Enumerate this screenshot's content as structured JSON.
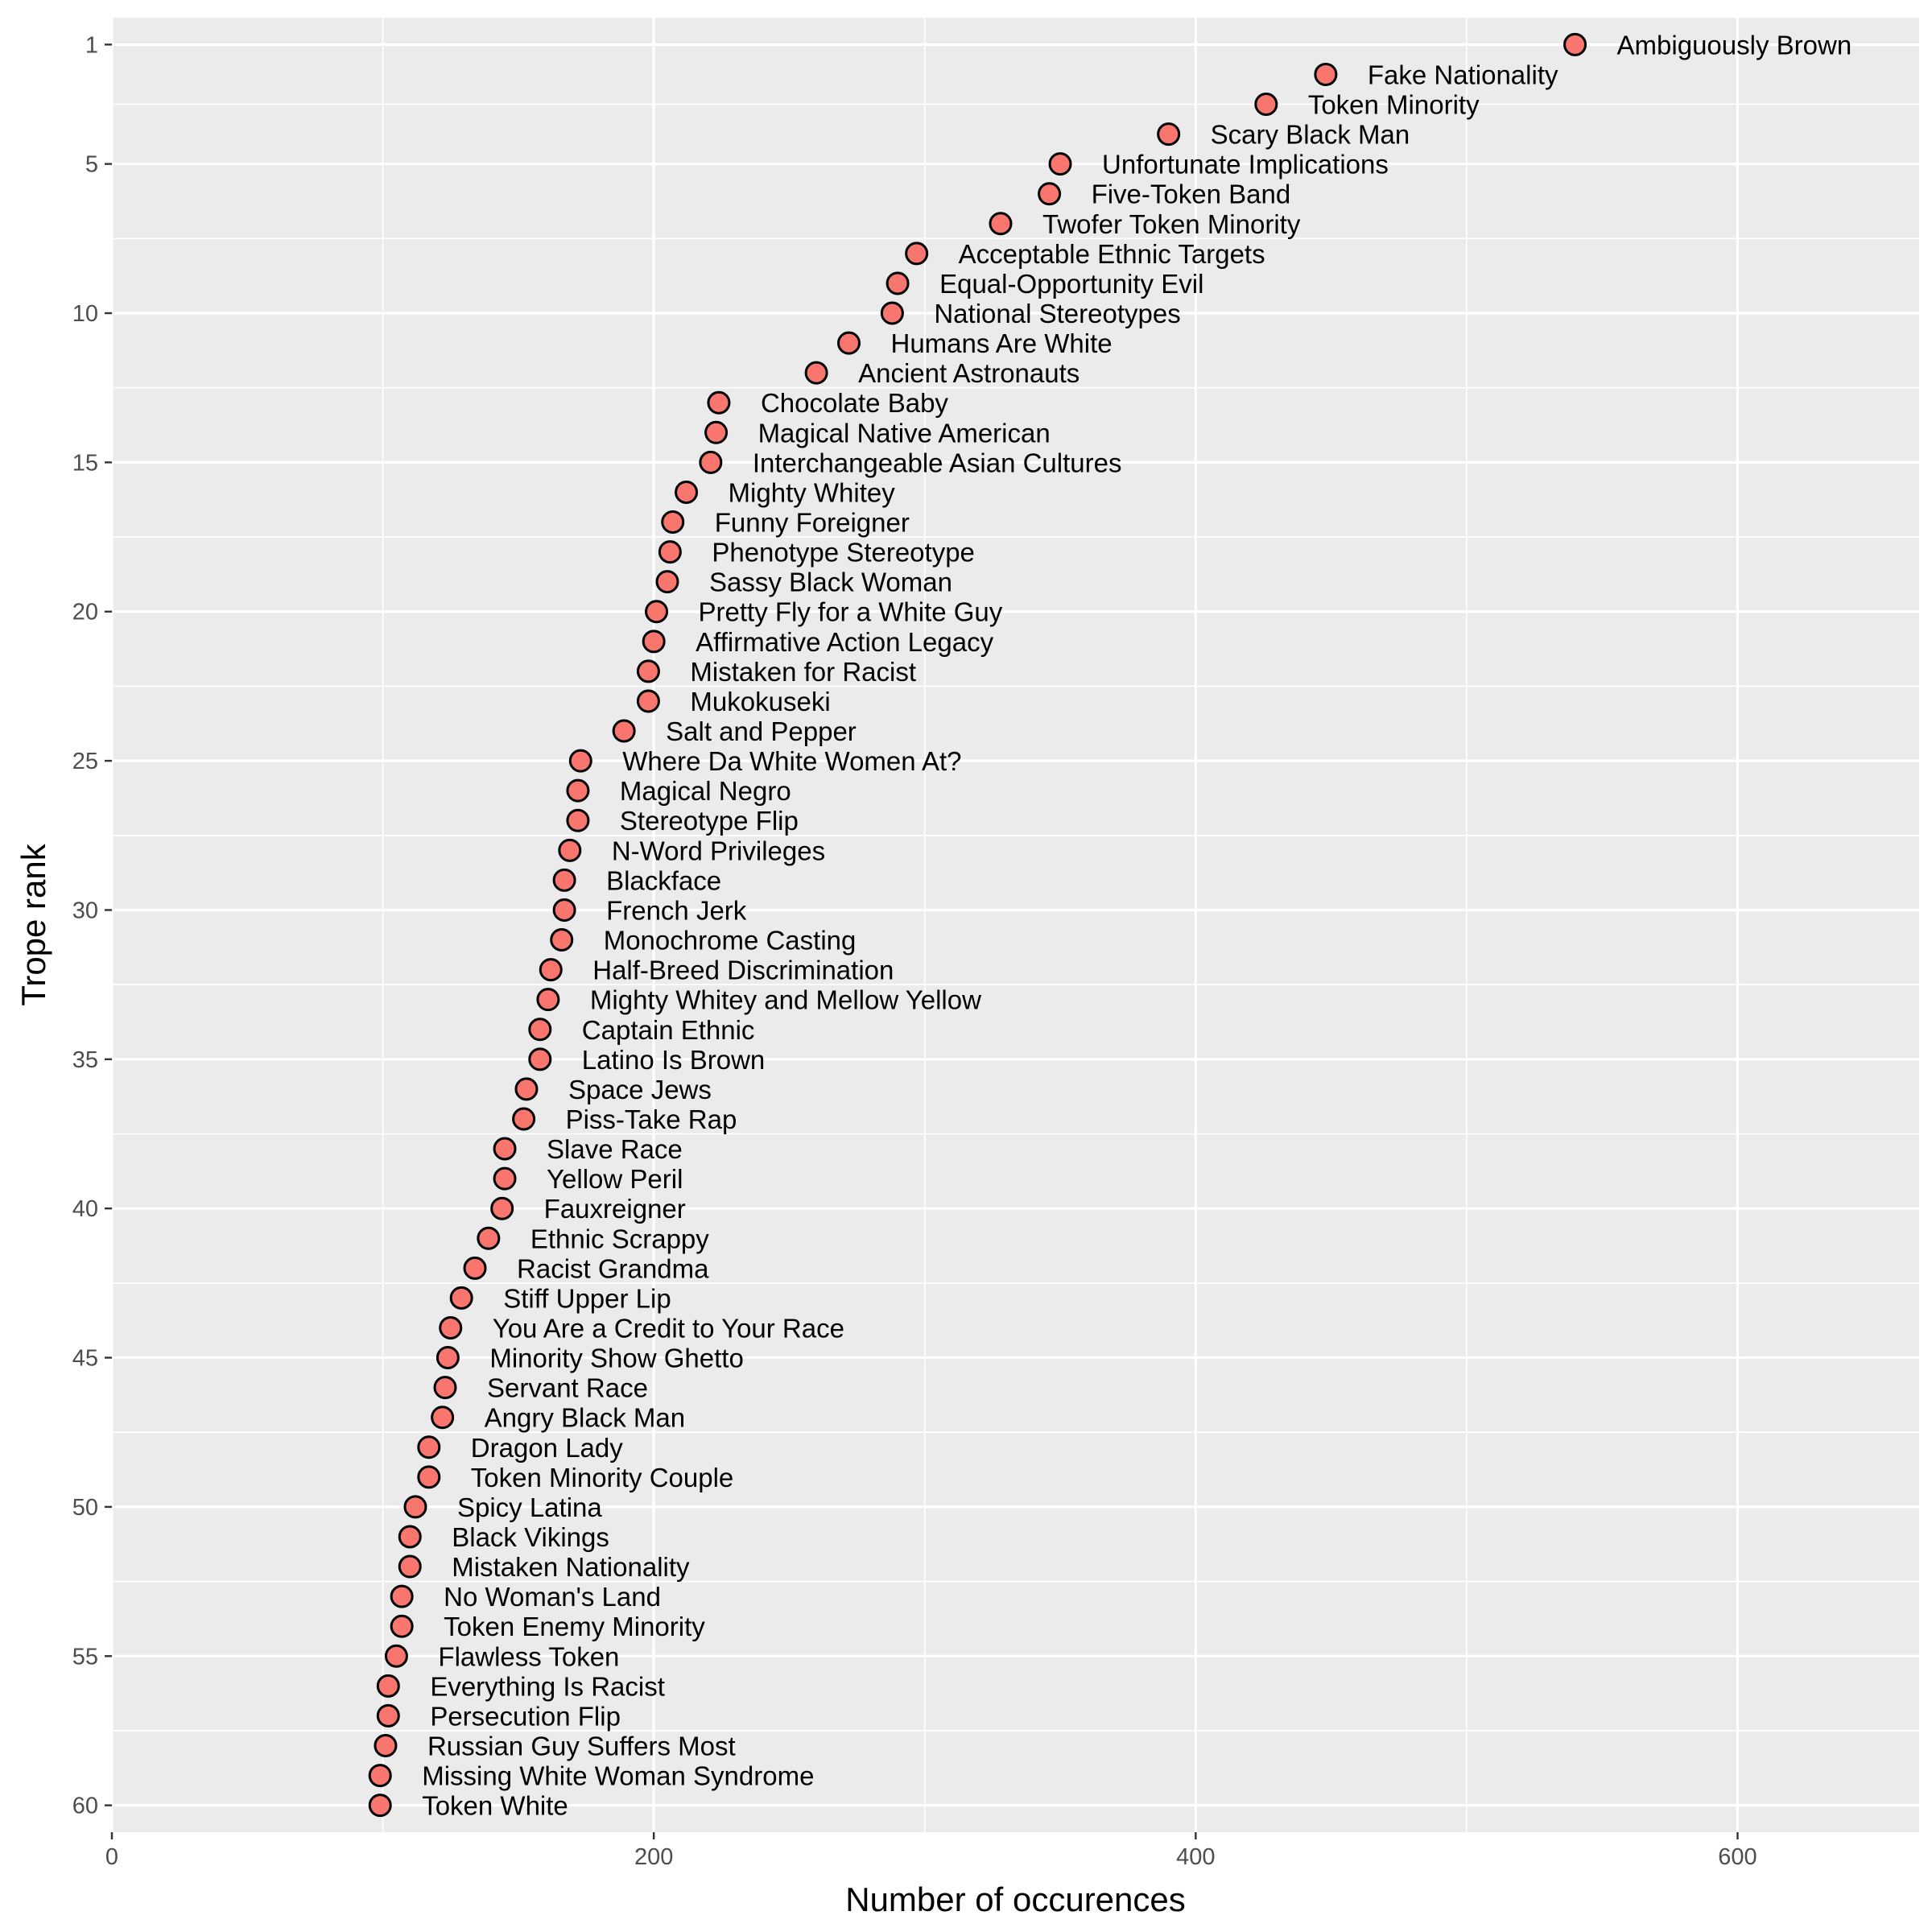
{
  "chart_data": {
    "type": "scatter",
    "xlabel": "Number of occurences",
    "ylabel": "Trope rank",
    "xlim": [
      0,
      667
    ],
    "ylim": [
      60.9,
      0.1
    ],
    "x_ticks": [
      0,
      200,
      400,
      600
    ],
    "y_ticks": [
      1,
      5,
      10,
      15,
      20,
      25,
      30,
      35,
      40,
      45,
      50,
      55,
      60
    ],
    "grid": true,
    "legend": "none",
    "colors": {
      "panel": "#ebebeb",
      "grid": "#ffffff",
      "point_fill": "#f8766d",
      "point_stroke": "#000000",
      "tick": "#4d4d4d"
    },
    "points": [
      {
        "rank": 1,
        "count": 540,
        "label": "Ambiguously Brown"
      },
      {
        "rank": 2,
        "count": 448,
        "label": "Fake Nationality"
      },
      {
        "rank": 3,
        "count": 426,
        "label": "Token Minority"
      },
      {
        "rank": 4,
        "count": 390,
        "label": "Scary Black Man"
      },
      {
        "rank": 5,
        "count": 350,
        "label": "Unfortunate Implications"
      },
      {
        "rank": 6,
        "count": 346,
        "label": "Five-Token Band"
      },
      {
        "rank": 7,
        "count": 328,
        "label": "Twofer Token Minority"
      },
      {
        "rank": 8,
        "count": 297,
        "label": "Acceptable Ethnic Targets"
      },
      {
        "rank": 9,
        "count": 290,
        "label": "Equal-Opportunity Evil"
      },
      {
        "rank": 10,
        "count": 288,
        "label": "National Stereotypes"
      },
      {
        "rank": 11,
        "count": 272,
        "label": "Humans Are White"
      },
      {
        "rank": 12,
        "count": 260,
        "label": "Ancient Astronauts"
      },
      {
        "rank": 13,
        "count": 224,
        "label": "Chocolate Baby"
      },
      {
        "rank": 14,
        "count": 223,
        "label": "Magical Native American"
      },
      {
        "rank": 15,
        "count": 221,
        "label": "Interchangeable Asian Cultures"
      },
      {
        "rank": 16,
        "count": 212,
        "label": "Mighty Whitey"
      },
      {
        "rank": 17,
        "count": 207,
        "label": "Funny Foreigner"
      },
      {
        "rank": 18,
        "count": 206,
        "label": "Phenotype Stereotype"
      },
      {
        "rank": 19,
        "count": 205,
        "label": "Sassy Black Woman"
      },
      {
        "rank": 20,
        "count": 201,
        "label": "Pretty Fly for a White Guy"
      },
      {
        "rank": 21,
        "count": 200,
        "label": "Affirmative Action Legacy"
      },
      {
        "rank": 22,
        "count": 198,
        "label": "Mistaken for Racist"
      },
      {
        "rank": 23,
        "count": 198,
        "label": "Mukokuseki"
      },
      {
        "rank": 24,
        "count": 189,
        "label": "Salt and Pepper"
      },
      {
        "rank": 25,
        "count": 173,
        "label": "Where Da White Women At?"
      },
      {
        "rank": 26,
        "count": 172,
        "label": "Magical Negro"
      },
      {
        "rank": 27,
        "count": 172,
        "label": "Stereotype Flip"
      },
      {
        "rank": 28,
        "count": 169,
        "label": "N-Word Privileges"
      },
      {
        "rank": 29,
        "count": 167,
        "label": "Blackface"
      },
      {
        "rank": 30,
        "count": 167,
        "label": "French Jerk"
      },
      {
        "rank": 31,
        "count": 166,
        "label": "Monochrome Casting"
      },
      {
        "rank": 32,
        "count": 162,
        "label": "Half-Breed Discrimination"
      },
      {
        "rank": 33,
        "count": 161,
        "label": "Mighty Whitey and Mellow Yellow"
      },
      {
        "rank": 34,
        "count": 158,
        "label": "Captain Ethnic"
      },
      {
        "rank": 35,
        "count": 158,
        "label": "Latino Is Brown"
      },
      {
        "rank": 36,
        "count": 153,
        "label": "Space Jews"
      },
      {
        "rank": 37,
        "count": 152,
        "label": "Piss-Take Rap"
      },
      {
        "rank": 38,
        "count": 145,
        "label": "Slave Race"
      },
      {
        "rank": 39,
        "count": 145,
        "label": "Yellow Peril"
      },
      {
        "rank": 40,
        "count": 144,
        "label": "Fauxreigner"
      },
      {
        "rank": 41,
        "count": 139,
        "label": "Ethnic Scrappy"
      },
      {
        "rank": 42,
        "count": 134,
        "label": "Racist Grandma"
      },
      {
        "rank": 43,
        "count": 129,
        "label": "Stiff Upper Lip"
      },
      {
        "rank": 44,
        "count": 125,
        "label": "You Are a Credit to Your Race"
      },
      {
        "rank": 45,
        "count": 124,
        "label": "Minority Show Ghetto"
      },
      {
        "rank": 46,
        "count": 123,
        "label": "Servant Race"
      },
      {
        "rank": 47,
        "count": 122,
        "label": "Angry Black Man"
      },
      {
        "rank": 48,
        "count": 117,
        "label": "Dragon Lady"
      },
      {
        "rank": 49,
        "count": 117,
        "label": "Token Minority Couple"
      },
      {
        "rank": 50,
        "count": 112,
        "label": "Spicy Latina"
      },
      {
        "rank": 51,
        "count": 110,
        "label": "Black Vikings"
      },
      {
        "rank": 52,
        "count": 110,
        "label": "Mistaken Nationality"
      },
      {
        "rank": 53,
        "count": 107,
        "label": "No Woman's Land"
      },
      {
        "rank": 54,
        "count": 107,
        "label": "Token Enemy Minority"
      },
      {
        "rank": 55,
        "count": 105,
        "label": "Flawless Token"
      },
      {
        "rank": 56,
        "count": 102,
        "label": "Everything Is Racist"
      },
      {
        "rank": 57,
        "count": 102,
        "label": "Persecution Flip"
      },
      {
        "rank": 58,
        "count": 101,
        "label": "Russian Guy Suffers Most"
      },
      {
        "rank": 59,
        "count": 99,
        "label": "Missing White Woman Syndrome"
      },
      {
        "rank": 60,
        "count": 99,
        "label": "Token White"
      }
    ]
  }
}
